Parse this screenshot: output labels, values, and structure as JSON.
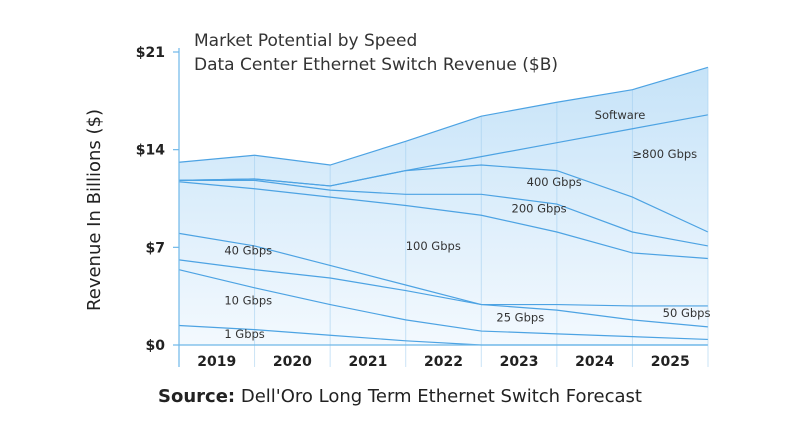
{
  "chart_data": {
    "type": "area",
    "title": "Market Potential by Speed",
    "subtitle": "Data Center Ethernet Switch Revenue ($B)",
    "ylabel": "Revenue In Billions ($)",
    "xlabel": "",
    "ylim": [
      0,
      21
    ],
    "yticks": [
      "$0",
      "$7",
      "$14",
      "$21"
    ],
    "yticks_values": [
      0,
      7,
      14,
      21
    ],
    "x": [
      2018.5,
      2019.5,
      2020.5,
      2021.5,
      2022.5,
      2023.5,
      2024.5,
      2025.5
    ],
    "x_tick_labels": [
      "2019",
      "2020",
      "2021",
      "2022",
      "2023",
      "2024",
      "2025"
    ],
    "x_tick_positions": [
      2019,
      2020,
      2021,
      2022,
      2023,
      2024,
      2025
    ],
    "boundaries": [
      {
        "name": "1 Gbps",
        "values": [
          1.4,
          1.1,
          0.7,
          0.3,
          0.0,
          0.0,
          0.0,
          0.0
        ]
      },
      {
        "name": "10 Gbps",
        "values": [
          5.4,
          4.1,
          2.9,
          1.8,
          1.0,
          0.8,
          0.6,
          0.4
        ]
      },
      {
        "name": "25 Gbps",
        "values": [
          6.1,
          5.4,
          4.8,
          3.9,
          2.9,
          2.5,
          1.8,
          1.3
        ]
      },
      {
        "name": "40 Gbps",
        "values": [
          8.0,
          7.1,
          5.7,
          4.3,
          2.9,
          2.9,
          2.8,
          2.8
        ]
      },
      {
        "name": "100 Gbps",
        "values": [
          11.7,
          11.2,
          10.6,
          10.0,
          9.3,
          8.1,
          6.6,
          6.2
        ]
      },
      {
        "name": "200 Gbps",
        "values": [
          11.8,
          11.8,
          11.1,
          10.8,
          10.8,
          10.1,
          8.1,
          7.1
        ]
      },
      {
        "name": "400 Gbps",
        "values": [
          11.8,
          11.9,
          11.4,
          12.5,
          12.9,
          12.5,
          10.6,
          8.1
        ]
      },
      {
        "name": "≥800 Gbps",
        "values": [
          11.8,
          11.9,
          11.4,
          12.5,
          13.5,
          14.5,
          15.5,
          16.5
        ]
      },
      {
        "name": "Software",
        "values": [
          13.1,
          13.6,
          12.9,
          14.6,
          16.4,
          17.4,
          18.3,
          19.9
        ]
      }
    ],
    "segment_labels": [
      {
        "text": "Software",
        "x": 2024.0,
        "y": 16.2
      },
      {
        "text": "≥800 Gbps",
        "x": 2024.5,
        "y": 13.4
      },
      {
        "text": "400 Gbps",
        "x": 2023.1,
        "y": 11.4
      },
      {
        "text": "200 Gbps",
        "x": 2022.9,
        "y": 9.5
      },
      {
        "text": "100 Gbps",
        "x": 2021.5,
        "y": 6.8
      },
      {
        "text": "40 Gbps",
        "x": 2019.1,
        "y": 6.5
      },
      {
        "text": "10 Gbps",
        "x": 2019.1,
        "y": 2.9
      },
      {
        "text": "25 Gbps",
        "x": 2022.7,
        "y": 1.7
      },
      {
        "text": "50 Gbps",
        "x": 2024.9,
        "y": 2.0
      },
      {
        "text": "1 Gbps",
        "x": 2019.1,
        "y": 0.5
      }
    ],
    "colors": {
      "fill_top": "#c6e3f8",
      "fill_bottom": "#f3f9fe",
      "line": "#4da3e3",
      "axis": "#6fb8e8",
      "grid": "#9fcdef"
    }
  },
  "source": {
    "prefix": "Source:",
    "text": " Dell'Oro Long Term Ethernet Switch Forecast"
  }
}
